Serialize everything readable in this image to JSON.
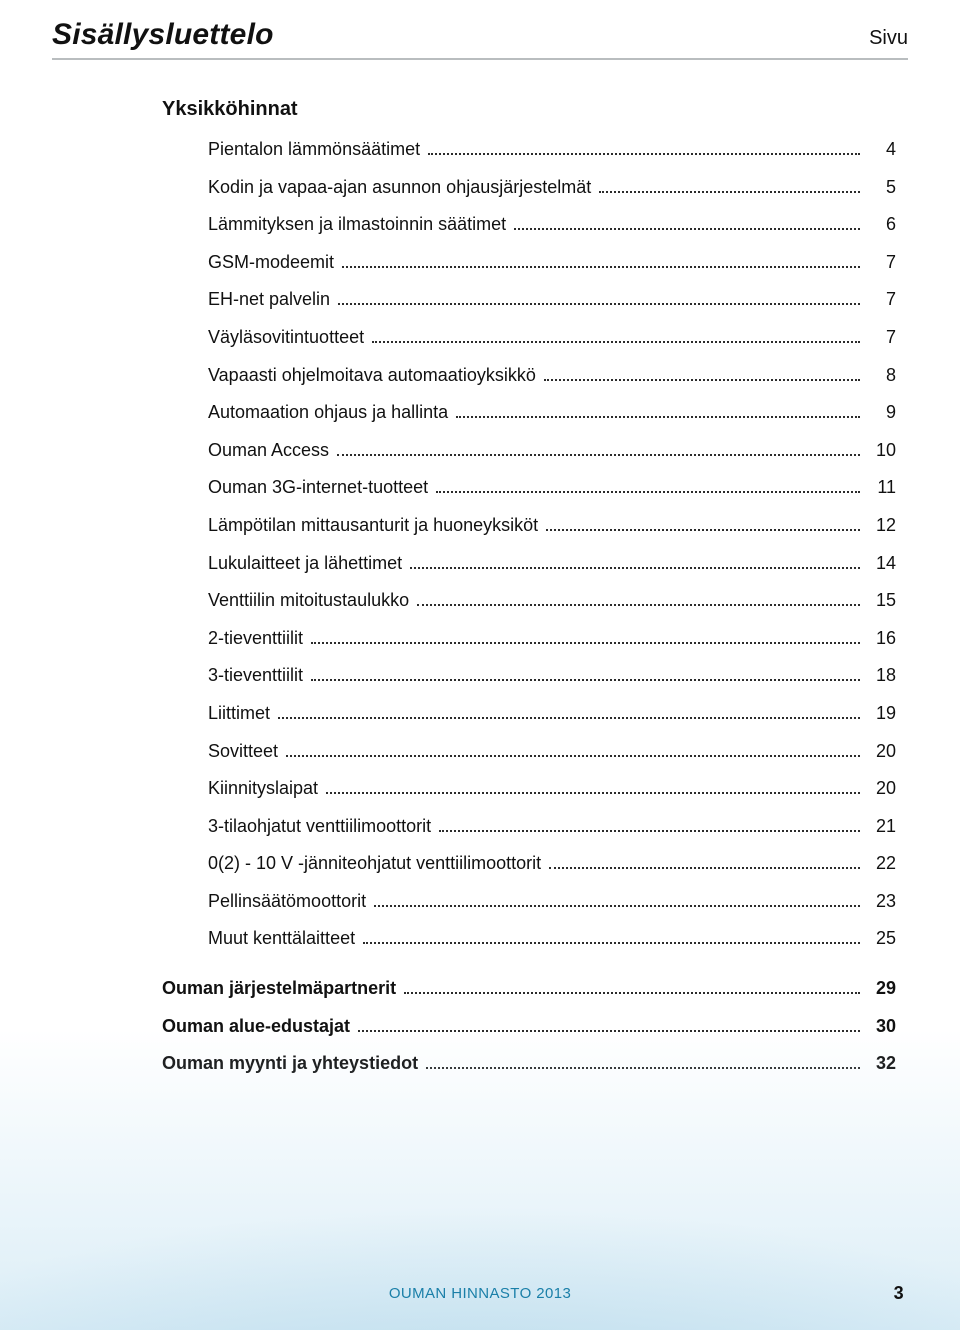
{
  "header": {
    "title": "Sisällysluettelo",
    "page_label": "Sivu"
  },
  "section_heading": "Yksikköhinnat",
  "entries": [
    {
      "label": "Pientalon lämmönsäätimet",
      "page": "4"
    },
    {
      "label": "Kodin ja vapaa-ajan asunnon ohjausjärjestelmät",
      "page": "5"
    },
    {
      "label": "Lämmityksen ja ilmastoinnin säätimet",
      "page": "6"
    },
    {
      "label": "GSM-modeemit",
      "page": "7"
    },
    {
      "label": "EH-net palvelin",
      "page": "7"
    },
    {
      "label": "Väyläsovitintuotteet",
      "page": "7"
    },
    {
      "label": "Vapaasti ohjelmoitava automaatioyksikkö",
      "page": "8"
    },
    {
      "label": "Automaation ohjaus ja hallinta",
      "page": "9"
    },
    {
      "label": "Ouman Access",
      "page": "10"
    },
    {
      "label": "Ouman 3G-internet-tuotteet",
      "page": "11"
    },
    {
      "label": "Lämpötilan mittausanturit ja huoneyksiköt",
      "page": "12"
    },
    {
      "label": "Lukulaitteet ja lähettimet",
      "page": "14"
    },
    {
      "label": "Venttiilin mitoitustaulukko",
      "page": "15"
    },
    {
      "label": "2-tieventtiilit",
      "page": "16"
    },
    {
      "label": "3-tieventtiilit",
      "page": "18"
    },
    {
      "label": "Liittimet",
      "page": "19"
    },
    {
      "label": "Sovitteet",
      "page": "20"
    },
    {
      "label": "Kiinnityslaipat",
      "page": "20"
    },
    {
      "label": "3-tilaohjatut venttiilimoottorit",
      "page": "21"
    },
    {
      "label": "0(2) - 10 V -jänniteohjatut venttiilimoottorit",
      "page": "22"
    },
    {
      "label": "Pellinsäätömoottorit",
      "page": "23"
    },
    {
      "label": "Muut kenttälaitteet",
      "page": "25"
    }
  ],
  "toplevel_entries": [
    {
      "label": "Ouman järjestelmäpartnerit",
      "page": "29"
    },
    {
      "label": "Ouman alue-edustajat",
      "page": "30"
    },
    {
      "label": "Ouman myynti ja yhteystiedot",
      "page": "32"
    }
  ],
  "footer": {
    "text": "OUMAN HINNASTO 2013",
    "page_number": "3"
  },
  "colors": {
    "text": "#111111",
    "accent": "#1a7fa8",
    "rule": "#b9bdbf",
    "dots": "#2b2b2b"
  },
  "fonts": {
    "title_size_pt": 30,
    "body_size_pt": 18,
    "heading_size_pt": 20,
    "footer_size_pt": 15
  }
}
